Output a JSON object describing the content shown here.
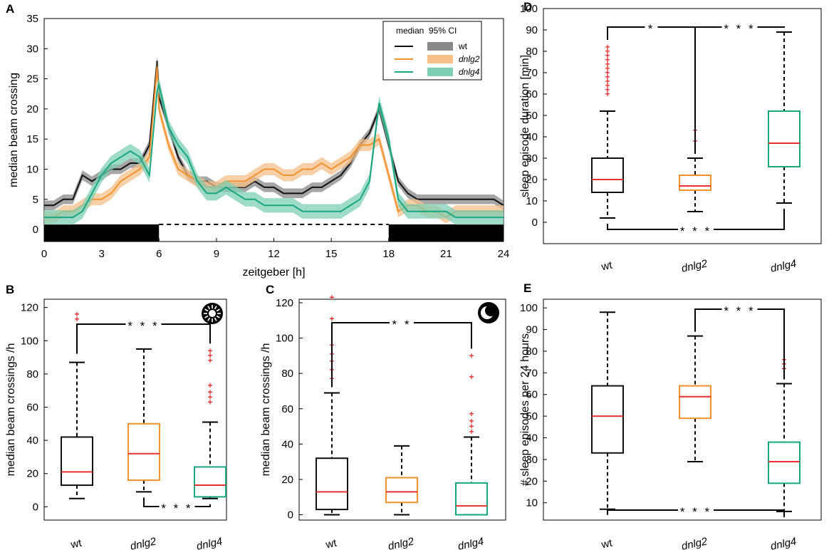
{
  "colors": {
    "wt": "#111111",
    "wt_ci": "#888888",
    "dnlg2": "#f0922d",
    "dnlg2_ci": "#f6c089",
    "dnlg4": "#1aa77f",
    "dnlg4_ci": "#7fcfb7",
    "median": "#e53232",
    "outlier": "#e53232"
  },
  "icons": {
    "B": "sun-icon",
    "C": "moon-icon"
  },
  "chart_data": [
    {
      "panel": "A",
      "type": "line",
      "xlabel": "zeitgeber [h]",
      "ylabel": "median beam crossing",
      "xlim": [
        0,
        24
      ],
      "ylim": [
        -2,
        35
      ],
      "xticks": [
        "0",
        "3",
        "6",
        "9",
        "12",
        "15",
        "18",
        "21",
        "24"
      ],
      "yticks": [
        "0",
        "5",
        "10",
        "15",
        "20",
        "25",
        "30",
        "35"
      ],
      "legend": {
        "position": "top-right",
        "header_median": "median",
        "header_ci": "95% CI",
        "labels": [
          "wt",
          "dnlg2",
          "dnlg4"
        ]
      },
      "light_dark_bar": [
        {
          "from": 0,
          "to": 6,
          "state": "dark"
        },
        {
          "from": 6,
          "to": 18,
          "state": "light"
        },
        {
          "from": 18,
          "to": 24,
          "state": "dark"
        }
      ],
      "x": [
        0,
        0.5,
        1,
        1.5,
        2,
        2.5,
        3,
        3.5,
        4,
        4.5,
        5,
        5.5,
        5.9,
        6,
        6.5,
        7,
        7.5,
        8,
        8.5,
        9,
        9.5,
        10,
        10.5,
        11,
        11.5,
        12,
        12.5,
        13,
        13.5,
        14,
        14.5,
        15,
        15.5,
        16,
        16.5,
        17,
        17.5,
        18,
        18.5,
        19,
        19.5,
        20,
        20.5,
        21,
        21.5,
        22,
        22.5,
        23,
        23.5,
        24
      ],
      "series": [
        {
          "name": "wt",
          "ci": 0.8,
          "values": [
            4,
            4,
            5,
            5,
            9,
            8,
            9,
            10,
            10,
            11,
            11,
            14,
            28,
            22,
            17,
            12,
            9,
            8,
            8,
            7,
            7,
            7,
            7,
            8,
            7,
            7,
            6,
            6,
            6,
            7,
            7,
            8,
            9,
            11,
            14,
            16,
            20,
            14,
            8,
            6,
            5,
            5,
            5,
            5,
            5,
            5,
            5,
            5,
            5,
            4
          ]
        },
        {
          "name": "dnlg2",
          "ci": 1.0,
          "values": [
            2,
            2,
            3,
            3,
            4,
            5,
            5,
            6,
            8,
            9,
            10,
            12,
            27,
            20,
            14,
            10,
            9,
            8,
            7,
            7,
            8,
            8,
            8,
            9,
            10,
            10,
            9,
            9,
            10,
            10,
            11,
            10,
            11,
            12,
            14,
            14,
            15,
            9,
            3,
            4,
            4,
            3,
            3,
            2,
            3,
            3,
            3,
            3,
            3,
            3
          ]
        },
        {
          "name": "dnlg4",
          "ci": 1.2,
          "values": [
            2,
            2,
            2,
            2,
            3,
            6,
            9,
            11,
            12,
            13,
            12,
            9,
            23,
            24,
            17,
            14,
            12,
            8,
            6,
            6,
            7,
            6,
            5,
            5,
            4,
            4,
            4,
            4,
            3,
            3,
            3,
            3,
            3,
            4,
            5,
            8,
            21,
            15,
            5,
            3,
            3,
            3,
            3,
            3,
            2,
            2,
            2,
            2,
            2,
            2
          ]
        }
      ]
    },
    {
      "panel": "B",
      "type": "box",
      "ylabel": "median beam crossings /h",
      "ylim": [
        -8,
        125
      ],
      "yticks": [
        "0",
        "20",
        "40",
        "60",
        "80",
        "100",
        "120"
      ],
      "categories": [
        "wt",
        "dnlg2",
        "dnlg4"
      ],
      "boxes": [
        {
          "name": "wt",
          "whisker_low": 5,
          "q1": 13,
          "median": 21,
          "q3": 42,
          "whisker_high": 87,
          "outliers": [
            113,
            116
          ]
        },
        {
          "name": "dnlg2",
          "whisker_low": 9,
          "q1": 16,
          "median": 32,
          "q3": 50,
          "whisker_high": 95,
          "outliers": []
        },
        {
          "name": "dnlg4",
          "whisker_low": 5,
          "q1": 6,
          "median": 13,
          "q3": 24,
          "whisker_high": 51,
          "outliers": [
            63,
            66,
            69,
            73,
            88,
            91,
            94
          ]
        }
      ],
      "significance": [
        {
          "pair": [
            "wt",
            "dnlg4"
          ],
          "label": "* * *",
          "side": "top"
        },
        {
          "pair": [
            "dnlg2",
            "dnlg4"
          ],
          "label": "* * *",
          "side": "bottom"
        }
      ]
    },
    {
      "panel": "C",
      "type": "box",
      "ylabel": "median beam crossings /h",
      "ylim": [
        -3,
        122
      ],
      "yticks": [
        "0",
        "20",
        "40",
        "60",
        "80",
        "100",
        "120"
      ],
      "categories": [
        "wt",
        "dnlg2",
        "dnlg4"
      ],
      "boxes": [
        {
          "name": "wt",
          "whisker_low": 0,
          "q1": 3,
          "median": 13,
          "q3": 32,
          "whisker_high": 69,
          "outliers": [
            77,
            82,
            87,
            91,
            96,
            111,
            123
          ]
        },
        {
          "name": "dnlg2",
          "whisker_low": 0,
          "q1": 7,
          "median": 13,
          "q3": 21,
          "whisker_high": 39,
          "outliers": []
        },
        {
          "name": "dnlg4",
          "whisker_low": 0,
          "q1": 0,
          "median": 5,
          "q3": 18,
          "whisker_high": 44,
          "outliers": [
            47,
            50,
            53,
            57,
            78,
            90
          ]
        }
      ],
      "significance": [
        {
          "pair": [
            "wt",
            "dnlg4"
          ],
          "label": "* *",
          "side": "top"
        }
      ]
    },
    {
      "panel": "D",
      "type": "box",
      "ylabel": "sleep episode duration [min]",
      "ylim": [
        -10,
        100
      ],
      "yticks": [
        "0",
        "10",
        "20",
        "30",
        "40",
        "50",
        "60",
        "70",
        "80",
        "90",
        "100"
      ],
      "categories": [
        "wt",
        "dnlg2",
        "dnlg4"
      ],
      "boxes": [
        {
          "name": "wt",
          "whisker_low": 2,
          "q1": 14,
          "median": 20,
          "q3": 30,
          "whisker_high": 52,
          "outliers": [
            60,
            62,
            64,
            66,
            68,
            70,
            72,
            74,
            76,
            78,
            80,
            82
          ]
        },
        {
          "name": "dnlg2",
          "whisker_low": 5,
          "q1": 15,
          "median": 17,
          "q3": 22,
          "whisker_high": 30,
          "outliers": [
            38,
            43
          ]
        },
        {
          "name": "dnlg4",
          "whisker_low": 9,
          "q1": 26,
          "median": 37,
          "q3": 52,
          "whisker_high": 89,
          "outliers": []
        }
      ],
      "significance": [
        {
          "pair": [
            "wt",
            "dnlg2"
          ],
          "label": "*",
          "side": "top"
        },
        {
          "pair": [
            "dnlg2",
            "dnlg4"
          ],
          "label": "* * *",
          "side": "top"
        },
        {
          "pair": [
            "wt",
            "dnlg4"
          ],
          "label": "* * *",
          "side": "bottom"
        }
      ]
    },
    {
      "panel": "E",
      "type": "box",
      "ylabel": "# sleep episodes per 24 hours",
      "ylim": [
        2,
        104
      ],
      "yticks": [
        "10",
        "20",
        "30",
        "40",
        "50",
        "60",
        "70",
        "80",
        "90",
        "100"
      ],
      "categories": [
        "wt",
        "dnlg2",
        "dnlg4"
      ],
      "boxes": [
        {
          "name": "wt",
          "whisker_low": 7,
          "q1": 33,
          "median": 50,
          "q3": 64,
          "whisker_high": 98,
          "outliers": []
        },
        {
          "name": "dnlg2",
          "whisker_low": 29,
          "q1": 49,
          "median": 59,
          "q3": 64,
          "whisker_high": 87,
          "outliers": []
        },
        {
          "name": "dnlg4",
          "whisker_low": 6,
          "q1": 19,
          "median": 29,
          "q3": 38,
          "whisker_high": 65,
          "outliers": [
            72,
            74,
            76
          ]
        }
      ],
      "significance": [
        {
          "pair": [
            "dnlg2",
            "dnlg4"
          ],
          "label": "* * *",
          "side": "top"
        },
        {
          "pair": [
            "wt",
            "dnlg4"
          ],
          "label": "* * *",
          "side": "bottom"
        }
      ]
    }
  ]
}
